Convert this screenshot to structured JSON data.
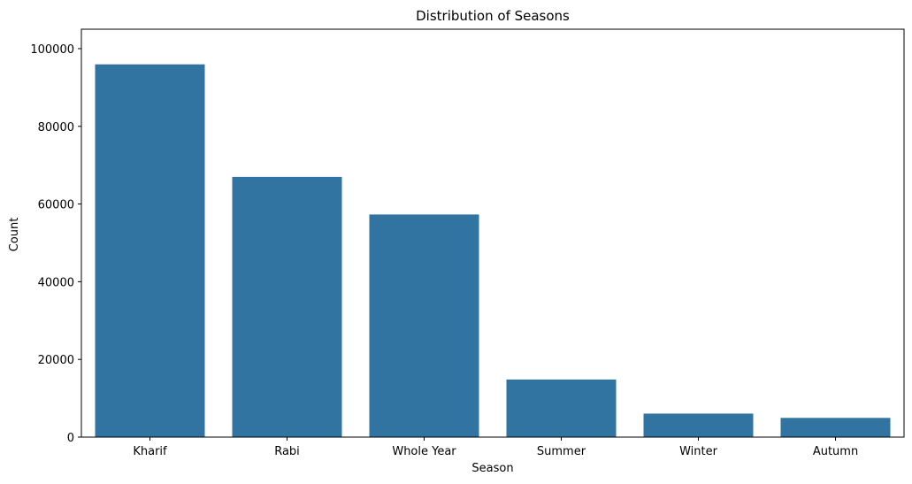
{
  "chart_data": {
    "type": "bar",
    "title": "Distribution of Seasons",
    "xlabel": "Season",
    "ylabel": "Count",
    "categories": [
      "Kharif",
      "Rabi",
      "Whole Year",
      "Summer",
      "Winter",
      "Autumn"
    ],
    "values": [
      95951,
      66987,
      57305,
      14825,
      6050,
      4949
    ],
    "ylim": [
      0,
      100000
    ],
    "yticks": [
      0,
      20000,
      40000,
      60000,
      80000,
      100000
    ],
    "ytick_labels": [
      "0",
      "20000",
      "40000",
      "60000",
      "80000",
      "100000"
    ],
    "bar_color": "#3274a1",
    "grid": false,
    "legend": "none"
  }
}
